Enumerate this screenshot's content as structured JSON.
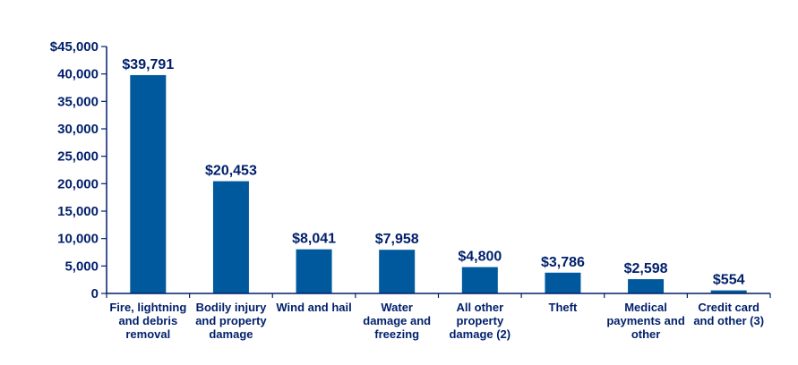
{
  "chart_data": {
    "type": "bar",
    "categories": [
      [
        "Fire, lightning",
        "and debris",
        "removal"
      ],
      [
        "Bodily injury",
        "and property",
        "damage"
      ],
      [
        "Wind and hail"
      ],
      [
        "Water",
        "damage and",
        "freezing"
      ],
      [
        "All other",
        "property",
        "damage (2)"
      ],
      [
        "Theft"
      ],
      [
        "Medical",
        "payments and",
        "other"
      ],
      [
        "Credit card",
        "and other (3)"
      ]
    ],
    "values": [
      39791,
      20453,
      8041,
      7958,
      4800,
      3786,
      2598,
      554
    ],
    "value_labels": [
      "$39,791",
      "$20,453",
      "$8,041",
      "$7,958",
      "$4,800",
      "$3,786",
      "$2,598",
      "$554"
    ],
    "y_ticks": [
      0,
      5000,
      10000,
      15000,
      20000,
      25000,
      30000,
      35000,
      40000,
      45000
    ],
    "y_tick_labels": [
      "0",
      "5,000",
      "10,000",
      "15,000",
      "20,000",
      "25,000",
      "30,000",
      "35,000",
      "40,000",
      "$45,000"
    ],
    "ylim": [
      0,
      45000
    ],
    "grid": false,
    "legend": "none",
    "colors": {
      "bar": "#00599c",
      "text": "#001f6b",
      "axis": "#001f6b"
    }
  }
}
